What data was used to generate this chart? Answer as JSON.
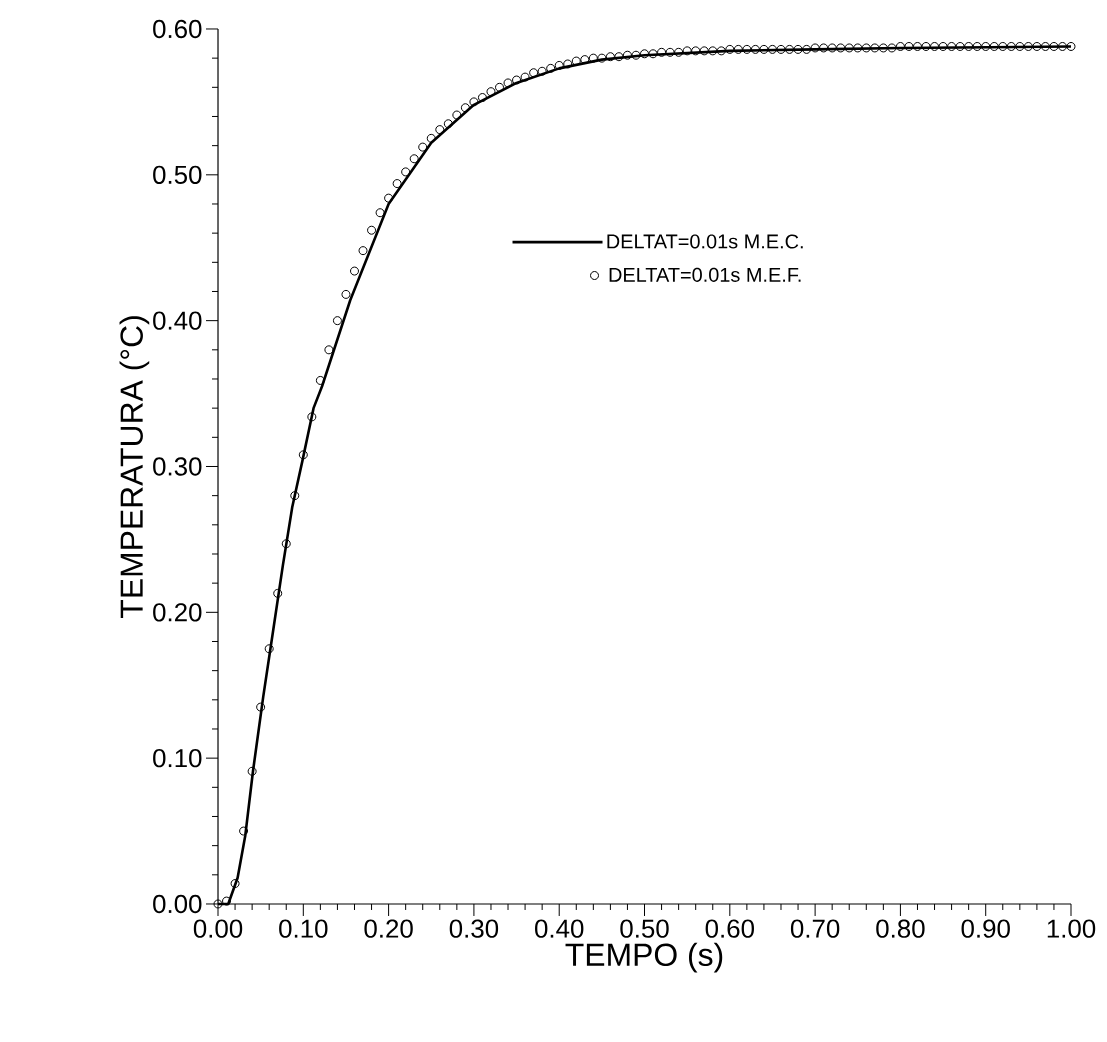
{
  "chart_data": {
    "type": "line",
    "xlabel": "TEMPO (s)",
    "ylabel": "TEMPERATURA (°C)",
    "xlim": [
      0,
      1
    ],
    "ylim": [
      0,
      0.6
    ],
    "xticks": [
      {
        "value": 0,
        "label": "0.00"
      },
      {
        "value": 0.1,
        "label": "0.10"
      },
      {
        "value": 0.2,
        "label": "0.20"
      },
      {
        "value": 0.3,
        "label": "0.30"
      },
      {
        "value": 0.4,
        "label": "0.40"
      },
      {
        "value": 0.5,
        "label": "0.50"
      },
      {
        "value": 0.6,
        "label": "0.60"
      },
      {
        "value": 0.7,
        "label": "0.70"
      },
      {
        "value": 0.8,
        "label": "0.80"
      },
      {
        "value": 0.9,
        "label": "0.90"
      },
      {
        "value": 1,
        "label": "1.00"
      }
    ],
    "yticks": [
      {
        "value": 0,
        "label": "0.00"
      },
      {
        "value": 0.1,
        "label": "0.10"
      },
      {
        "value": 0.2,
        "label": "0.20"
      },
      {
        "value": 0.3,
        "label": "0.30"
      },
      {
        "value": 0.4,
        "label": "0.40"
      },
      {
        "value": 0.5,
        "label": "0.50"
      },
      {
        "value": 0.6,
        "label": "0.60"
      }
    ],
    "legend": "center",
    "series": [
      {
        "name": "DELTAT=0.01s M.E.C.",
        "color": "#000000",
        "x": [
          0,
          0.012,
          0.023,
          0.032,
          0.041,
          0.053,
          0.064,
          0.076,
          0.087,
          0.099,
          0.112,
          0.122,
          0.155,
          0.2,
          0.25,
          0.3,
          0.35,
          0.4,
          0.45,
          0.5,
          0.6,
          0.7,
          0.8,
          1.0
        ],
        "values": [
          0,
          0,
          0.018,
          0.047,
          0.091,
          0.142,
          0.185,
          0.232,
          0.272,
          0.304,
          0.34,
          0.355,
          0.414,
          0.48,
          0.522,
          0.548,
          0.563,
          0.573,
          0.579,
          0.582,
          0.585,
          0.586,
          0.587,
          0.588
        ]
      },
      {
        "name": "DELTAT=0.01s M.E.F.",
        "type": "scatter",
        "color": "#000000",
        "marker": "circle",
        "x": [
          0,
          0.01,
          0.02,
          0.03,
          0.04,
          0.05,
          0.06,
          0.07,
          0.08,
          0.09,
          0.1,
          0.11,
          0.12,
          0.13,
          0.14,
          0.15,
          0.16,
          0.17,
          0.18,
          0.19,
          0.2,
          0.21,
          0.22,
          0.23,
          0.24,
          0.25,
          0.26,
          0.27,
          0.28,
          0.29,
          0.3,
          0.31,
          0.32,
          0.33,
          0.34,
          0.35,
          0.36,
          0.37,
          0.38,
          0.39,
          0.4,
          0.41,
          0.42,
          0.43,
          0.44,
          0.45,
          0.46,
          0.47,
          0.48,
          0.49,
          0.5,
          0.51,
          0.52,
          0.53,
          0.54,
          0.55,
          0.56,
          0.57,
          0.58,
          0.59,
          0.6,
          0.61,
          0.62,
          0.63,
          0.64,
          0.65,
          0.66,
          0.67,
          0.68,
          0.69,
          0.7,
          0.71,
          0.72,
          0.73,
          0.74,
          0.75,
          0.76,
          0.77,
          0.78,
          0.79,
          0.8,
          0.81,
          0.82,
          0.83,
          0.84,
          0.85,
          0.86,
          0.87,
          0.88,
          0.89,
          0.9,
          0.91,
          0.92,
          0.93,
          0.94,
          0.95,
          0.96,
          0.97,
          0.98,
          0.99,
          1.0
        ],
        "values": [
          0,
          0.002,
          0.014,
          0.05,
          0.091,
          0.135,
          0.175,
          0.213,
          0.247,
          0.28,
          0.308,
          0.334,
          0.359,
          0.38,
          0.4,
          0.418,
          0.434,
          0.448,
          0.462,
          0.474,
          0.484,
          0.494,
          0.502,
          0.511,
          0.519,
          0.525,
          0.531,
          0.535,
          0.541,
          0.546,
          0.55,
          0.553,
          0.557,
          0.56,
          0.563,
          0.565,
          0.567,
          0.57,
          0.571,
          0.573,
          0.575,
          0.576,
          0.578,
          0.579,
          0.58,
          0.58,
          0.581,
          0.581,
          0.582,
          0.582,
          0.583,
          0.583,
          0.584,
          0.584,
          0.584,
          0.585,
          0.585,
          0.585,
          0.585,
          0.585,
          0.586,
          0.586,
          0.586,
          0.586,
          0.586,
          0.586,
          0.586,
          0.586,
          0.586,
          0.586,
          0.587,
          0.587,
          0.587,
          0.587,
          0.587,
          0.587,
          0.587,
          0.587,
          0.587,
          0.587,
          0.588,
          0.588,
          0.588,
          0.588,
          0.588,
          0.588,
          0.588,
          0.588,
          0.588,
          0.588,
          0.588,
          0.588,
          0.588,
          0.588,
          0.588,
          0.588,
          0.588,
          0.588,
          0.588,
          0.588,
          0.588
        ]
      }
    ]
  }
}
